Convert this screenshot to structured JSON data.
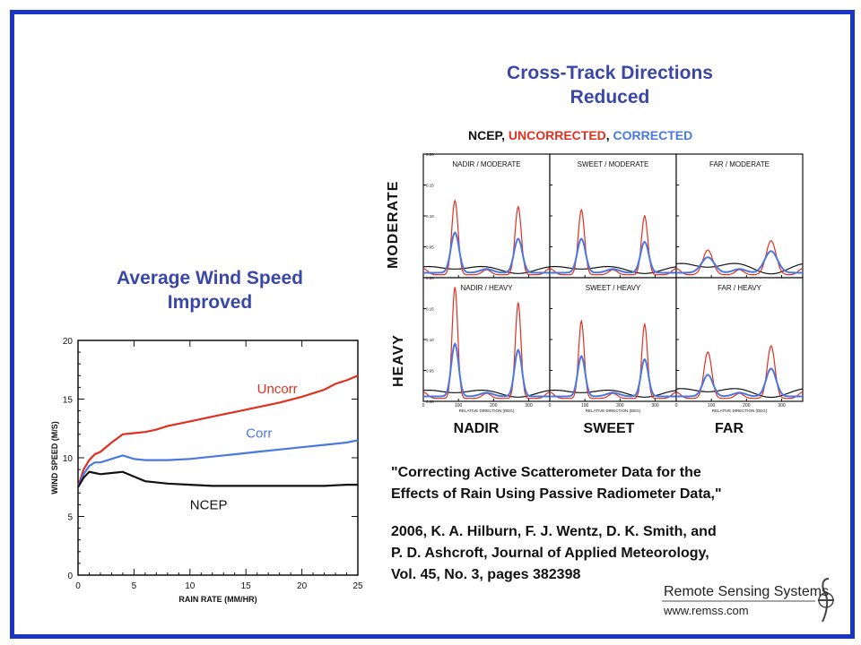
{
  "left_title": [
    "Average Wind Speed",
    "Improved"
  ],
  "right_title": [
    "Cross-Track Directions",
    "Reduced"
  ],
  "legend_line": {
    "ncep": "NCEP",
    "uncorrected": "UNCORRECTED",
    "corrected": "CORRECTED",
    "sep": ", "
  },
  "row_labels": [
    "MODERATE",
    "HEAVY"
  ],
  "col_labels": [
    "NADIR",
    "SWEET",
    "FAR"
  ],
  "citation": {
    "title_lines": [
      "\"Correcting Active Scatterometer Data for the",
      "Effects of Rain Using Passive Radiometer Data,\""
    ],
    "ref_lines": [
      "2006, K. A. Hilburn, F. J. Wentz, D. K. Smith, and",
      "P. D. Ashcroft, Journal of Applied Meteorology,",
      "Vol. 45, No. 3, pages 382398"
    ]
  },
  "logo": {
    "name": "Remote Sensing Systems",
    "url": "www.remss.com"
  },
  "colors": {
    "frame": "#1a34c8",
    "title": "#3a47a8",
    "uncorr": "#e03020",
    "corr": "#4a78e0",
    "ncep": "#111111"
  },
  "chart_data": [
    {
      "type": "line",
      "xlabel": "RAIN RATE (MM/HR)",
      "ylabel": "WIND SPEED (M/S)",
      "xlim": [
        0,
        25
      ],
      "ylim": [
        0,
        20
      ],
      "xticks": [
        "0",
        "5",
        "10",
        "15",
        "20",
        "25"
      ],
      "yticks": [
        "0",
        "5",
        "10",
        "15",
        "20"
      ],
      "grid": false,
      "series": [
        {
          "name": "Uncorr",
          "color": "#e03020",
          "x": [
            0,
            0.5,
            1,
            1.5,
            2,
            3,
            4,
            5,
            6,
            7,
            8,
            10,
            12,
            14,
            16,
            18,
            20,
            22,
            23,
            24,
            25
          ],
          "y": [
            7.5,
            9.0,
            9.8,
            10.3,
            10.5,
            11.3,
            12.0,
            12.1,
            12.2,
            12.4,
            12.7,
            13.1,
            13.5,
            13.9,
            14.3,
            14.7,
            15.2,
            15.8,
            16.3,
            16.6,
            17.0
          ]
        },
        {
          "name": "Corr",
          "color": "#4a78e0",
          "x": [
            0,
            0.5,
            1,
            1.5,
            2,
            3,
            4,
            5,
            6,
            8,
            10,
            12,
            14,
            16,
            18,
            20,
            22,
            24,
            25
          ],
          "y": [
            7.5,
            8.6,
            9.3,
            9.6,
            9.6,
            9.9,
            10.2,
            9.9,
            9.8,
            9.8,
            9.9,
            10.1,
            10.3,
            10.5,
            10.7,
            10.9,
            11.1,
            11.3,
            11.5
          ]
        },
        {
          "name": "NCEP",
          "color": "#111111",
          "x": [
            0,
            0.5,
            1,
            1.5,
            2,
            3,
            4,
            5,
            6,
            8,
            10,
            12,
            14,
            16,
            18,
            20,
            22,
            24,
            25
          ],
          "y": [
            7.5,
            8.3,
            8.8,
            8.7,
            8.6,
            8.7,
            8.8,
            8.4,
            8.0,
            7.8,
            7.7,
            7.6,
            7.6,
            7.6,
            7.6,
            7.6,
            7.6,
            7.7,
            7.7
          ]
        }
      ]
    },
    {
      "type": "line",
      "note_panels": [
        "NADIR / MODERATE",
        "SWEET / MODERATE",
        "FAR / MODERATE",
        "NADIR / HEAVY",
        "SWEET / HEAVY",
        "FAR / HEAVY"
      ],
      "xlabel": "RELATIVE DIRECTION (DEG)",
      "xlim": [
        0,
        360
      ],
      "ylim": [
        0,
        0.2
      ],
      "xticks": [
        "0",
        "100",
        "200",
        "300"
      ],
      "yticks": [
        "0.00",
        "0.05",
        "0.10",
        "0.15",
        "0.20"
      ],
      "series_colors": {
        "ncep": "#111111",
        "uncorrected": "#e03020",
        "corrected": "#4a78e0"
      },
      "panels": [
        {
          "name": "NADIR / MODERATE",
          "ncep_amp": 0.012,
          "uncorr_peaks": [
            0.12,
            0.11
          ],
          "corr_peaks": [
            0.065,
            0.055
          ],
          "width": 9
        },
        {
          "name": "SWEET / MODERATE",
          "ncep_amp": 0.012,
          "uncorr_peaks": [
            0.105,
            0.095
          ],
          "corr_peaks": [
            0.055,
            0.05
          ],
          "width": 9
        },
        {
          "name": "FAR / MODERATE",
          "ncep_amp": 0.018,
          "uncorr_peaks": [
            0.04,
            0.055
          ],
          "corr_peaks": [
            0.025,
            0.035
          ],
          "width": 14
        },
        {
          "name": "NADIR / HEAVY",
          "ncep_amp": 0.012,
          "uncorr_peaks": [
            0.18,
            0.155
          ],
          "corr_peaks": [
            0.085,
            0.075
          ],
          "width": 8
        },
        {
          "name": "SWEET / HEAVY",
          "ncep_amp": 0.012,
          "uncorr_peaks": [
            0.125,
            0.12
          ],
          "corr_peaks": [
            0.065,
            0.06
          ],
          "width": 8
        },
        {
          "name": "FAR / HEAVY",
          "ncep_amp": 0.015,
          "uncorr_peaks": [
            0.075,
            0.085
          ],
          "corr_peaks": [
            0.035,
            0.045
          ],
          "width": 11
        }
      ]
    }
  ]
}
